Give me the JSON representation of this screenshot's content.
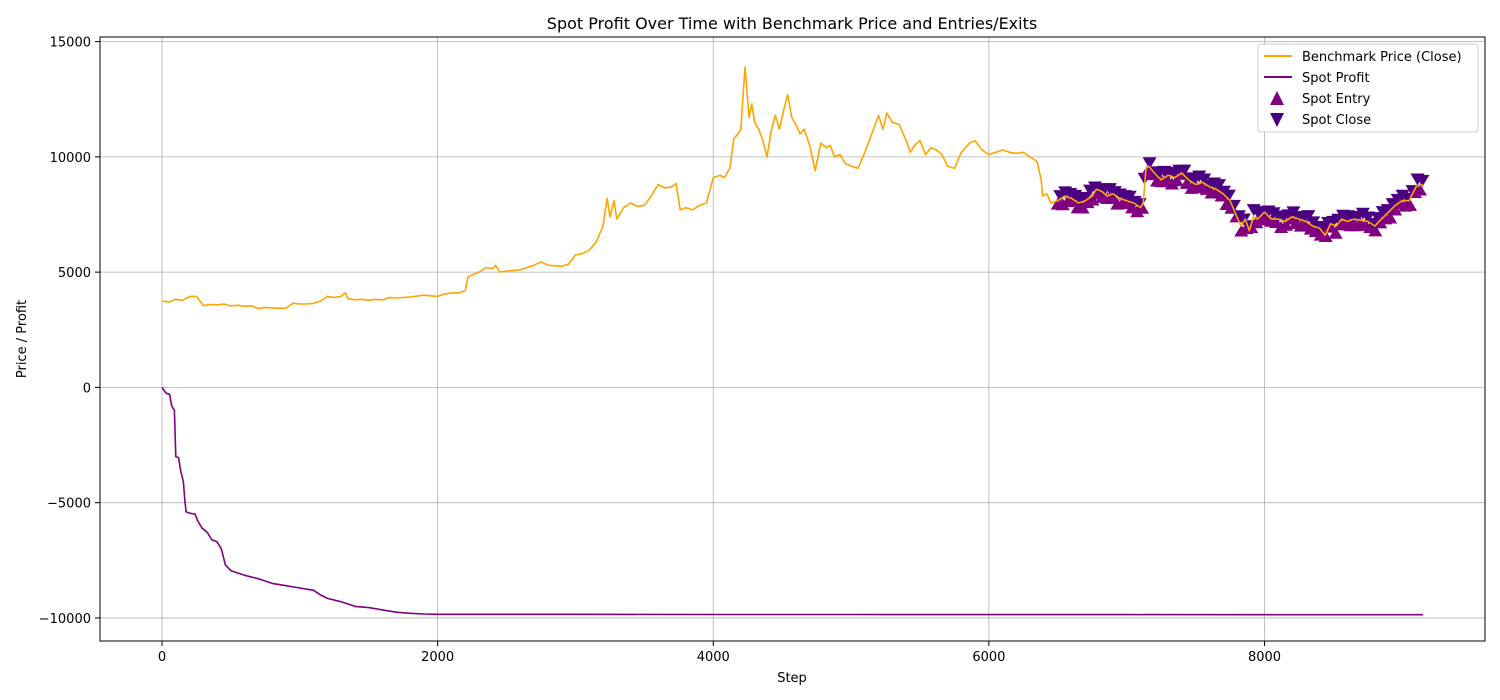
{
  "chart_data": {
    "type": "line",
    "title": "Spot Profit Over Time with Benchmark Price and Entries/Exits",
    "xlabel": "Step",
    "ylabel": "Price / Profit",
    "xlim": [
      -450,
      9600
    ],
    "ylim": [
      -11000,
      15200
    ],
    "xticks": [
      0,
      2000,
      4000,
      6000,
      8000
    ],
    "yticks": [
      -10000,
      -5000,
      0,
      5000,
      10000,
      15000
    ],
    "grid": true,
    "legend_position": "top-right",
    "series": [
      {
        "name": "Benchmark Price (Close)",
        "kind": "line",
        "color": "#ffa500",
        "points": [
          [
            0,
            3750
          ],
          [
            50,
            3700
          ],
          [
            100,
            3820
          ],
          [
            150,
            3780
          ],
          [
            200,
            3950
          ],
          [
            250,
            3950
          ],
          [
            300,
            3550
          ],
          [
            350,
            3600
          ],
          [
            400,
            3580
          ],
          [
            450,
            3620
          ],
          [
            500,
            3530
          ],
          [
            550,
            3560
          ],
          [
            600,
            3520
          ],
          [
            650,
            3540
          ],
          [
            700,
            3420
          ],
          [
            750,
            3470
          ],
          [
            800,
            3450
          ],
          [
            850,
            3430
          ],
          [
            900,
            3440
          ],
          [
            950,
            3650
          ],
          [
            1000,
            3620
          ],
          [
            1050,
            3620
          ],
          [
            1100,
            3650
          ],
          [
            1150,
            3750
          ],
          [
            1200,
            3950
          ],
          [
            1250,
            3900
          ],
          [
            1300,
            3950
          ],
          [
            1330,
            4100
          ],
          [
            1350,
            3850
          ],
          [
            1400,
            3800
          ],
          [
            1450,
            3820
          ],
          [
            1500,
            3780
          ],
          [
            1550,
            3820
          ],
          [
            1600,
            3790
          ],
          [
            1650,
            3900
          ],
          [
            1700,
            3880
          ],
          [
            1800,
            3920
          ],
          [
            1900,
            4000
          ],
          [
            2000,
            3950
          ],
          [
            2050,
            4050
          ],
          [
            2100,
            4100
          ],
          [
            2150,
            4100
          ],
          [
            2200,
            4200
          ],
          [
            2220,
            4800
          ],
          [
            2300,
            5000
          ],
          [
            2350,
            5200
          ],
          [
            2400,
            5150
          ],
          [
            2420,
            5300
          ],
          [
            2450,
            5000
          ],
          [
            2500,
            5050
          ],
          [
            2600,
            5100
          ],
          [
            2700,
            5300
          ],
          [
            2750,
            5450
          ],
          [
            2800,
            5300
          ],
          [
            2900,
            5250
          ],
          [
            2950,
            5350
          ],
          [
            3000,
            5750
          ],
          [
            3050,
            5800
          ],
          [
            3100,
            5950
          ],
          [
            3150,
            6300
          ],
          [
            3200,
            7000
          ],
          [
            3230,
            8200
          ],
          [
            3250,
            7400
          ],
          [
            3280,
            8100
          ],
          [
            3300,
            7300
          ],
          [
            3350,
            7800
          ],
          [
            3400,
            8000
          ],
          [
            3450,
            7850
          ],
          [
            3500,
            7900
          ],
          [
            3550,
            8300
          ],
          [
            3600,
            8800
          ],
          [
            3650,
            8650
          ],
          [
            3700,
            8700
          ],
          [
            3730,
            8850
          ],
          [
            3760,
            7700
          ],
          [
            3800,
            7800
          ],
          [
            3850,
            7700
          ],
          [
            3900,
            7900
          ],
          [
            3950,
            8000
          ],
          [
            4000,
            9100
          ],
          [
            4050,
            9200
          ],
          [
            4080,
            9100
          ],
          [
            4120,
            9500
          ],
          [
            4150,
            10800
          ],
          [
            4180,
            11000
          ],
          [
            4200,
            11200
          ],
          [
            4230,
            13900
          ],
          [
            4260,
            11700
          ],
          [
            4280,
            12300
          ],
          [
            4300,
            11500
          ],
          [
            4330,
            11200
          ],
          [
            4360,
            10700
          ],
          [
            4390,
            10000
          ],
          [
            4420,
            11100
          ],
          [
            4450,
            11800
          ],
          [
            4480,
            11200
          ],
          [
            4510,
            12000
          ],
          [
            4540,
            12700
          ],
          [
            4570,
            11700
          ],
          [
            4600,
            11400
          ],
          [
            4630,
            11000
          ],
          [
            4660,
            11200
          ],
          [
            4700,
            10500
          ],
          [
            4740,
            9400
          ],
          [
            4780,
            10600
          ],
          [
            4820,
            10400
          ],
          [
            4850,
            10500
          ],
          [
            4880,
            10000
          ],
          [
            4920,
            10100
          ],
          [
            4960,
            9700
          ],
          [
            5000,
            9600
          ],
          [
            5050,
            9500
          ],
          [
            5100,
            10200
          ],
          [
            5150,
            11000
          ],
          [
            5200,
            11800
          ],
          [
            5230,
            11200
          ],
          [
            5260,
            11900
          ],
          [
            5300,
            11500
          ],
          [
            5350,
            11400
          ],
          [
            5400,
            10700
          ],
          [
            5430,
            10200
          ],
          [
            5460,
            10500
          ],
          [
            5500,
            10700
          ],
          [
            5540,
            10100
          ],
          [
            5580,
            10400
          ],
          [
            5620,
            10300
          ],
          [
            5660,
            10100
          ],
          [
            5700,
            9600
          ],
          [
            5750,
            9500
          ],
          [
            5800,
            10200
          ],
          [
            5830,
            10400
          ],
          [
            5860,
            10600
          ],
          [
            5900,
            10700
          ],
          [
            5950,
            10300
          ],
          [
            6000,
            10100
          ],
          [
            6050,
            10200
          ],
          [
            6100,
            10300
          ],
          [
            6150,
            10200
          ],
          [
            6200,
            10150
          ],
          [
            6250,
            10200
          ],
          [
            6300,
            10000
          ],
          [
            6350,
            9800
          ],
          [
            6380,
            9000
          ],
          [
            6390,
            8300
          ],
          [
            6420,
            8400
          ],
          [
            6450,
            8000
          ],
          [
            6500,
            8100
          ],
          [
            6550,
            8300
          ],
          [
            6600,
            8200
          ],
          [
            6650,
            8000
          ],
          [
            6700,
            8100
          ],
          [
            6750,
            8300
          ],
          [
            6780,
            8600
          ],
          [
            6820,
            8500
          ],
          [
            6860,
            8300
          ],
          [
            6900,
            8400
          ],
          [
            6950,
            8200
          ],
          [
            7000,
            8100
          ],
          [
            7050,
            8000
          ],
          [
            7100,
            7800
          ],
          [
            7120,
            8000
          ],
          [
            7140,
            9500
          ],
          [
            7160,
            9600
          ],
          [
            7200,
            9300
          ],
          [
            7250,
            9000
          ],
          [
            7300,
            9200
          ],
          [
            7350,
            9100
          ],
          [
            7400,
            9300
          ],
          [
            7450,
            9000
          ],
          [
            7500,
            8800
          ],
          [
            7550,
            8900
          ],
          [
            7600,
            8700
          ],
          [
            7650,
            8600
          ],
          [
            7700,
            8400
          ],
          [
            7750,
            8100
          ],
          [
            7800,
            7400
          ],
          [
            7830,
            7000
          ],
          [
            7860,
            7300
          ],
          [
            7890,
            6800
          ],
          [
            7920,
            7400
          ],
          [
            7950,
            7300
          ],
          [
            8000,
            7600
          ],
          [
            8050,
            7300
          ],
          [
            8100,
            7300
          ],
          [
            8150,
            7200
          ],
          [
            8200,
            7400
          ],
          [
            8250,
            7300
          ],
          [
            8300,
            7200
          ],
          [
            8350,
            7000
          ],
          [
            8400,
            6900
          ],
          [
            8440,
            6600
          ],
          [
            8480,
            7100
          ],
          [
            8520,
            7000
          ],
          [
            8560,
            7300
          ],
          [
            8600,
            7200
          ],
          [
            8650,
            7300
          ],
          [
            8700,
            7250
          ],
          [
            8750,
            7200
          ],
          [
            8800,
            7000
          ],
          [
            8850,
            7300
          ],
          [
            8900,
            7600
          ],
          [
            8950,
            7900
          ],
          [
            9000,
            8100
          ],
          [
            9050,
            8100
          ],
          [
            9100,
            8700
          ],
          [
            9150,
            8800
          ]
        ]
      },
      {
        "name": "Spot Profit",
        "kind": "line",
        "color": "#800080",
        "points": [
          [
            0,
            0
          ],
          [
            30,
            -250
          ],
          [
            55,
            -300
          ],
          [
            70,
            -800
          ],
          [
            90,
            -1000
          ],
          [
            100,
            -3000
          ],
          [
            120,
            -3050
          ],
          [
            135,
            -3600
          ],
          [
            155,
            -4100
          ],
          [
            165,
            -4900
          ],
          [
            175,
            -5400
          ],
          [
            200,
            -5450
          ],
          [
            240,
            -5500
          ],
          [
            260,
            -5800
          ],
          [
            290,
            -6100
          ],
          [
            330,
            -6300
          ],
          [
            360,
            -6600
          ],
          [
            400,
            -6700
          ],
          [
            430,
            -7000
          ],
          [
            460,
            -7700
          ],
          [
            500,
            -7950
          ],
          [
            600,
            -8150
          ],
          [
            700,
            -8300
          ],
          [
            800,
            -8500
          ],
          [
            900,
            -8600
          ],
          [
            1000,
            -8700
          ],
          [
            1100,
            -8800
          ],
          [
            1150,
            -9000
          ],
          [
            1200,
            -9150
          ],
          [
            1300,
            -9300
          ],
          [
            1400,
            -9500
          ],
          [
            1500,
            -9550
          ],
          [
            1600,
            -9650
          ],
          [
            1700,
            -9750
          ],
          [
            1800,
            -9800
          ],
          [
            1900,
            -9830
          ],
          [
            2000,
            -9840
          ],
          [
            3000,
            -9840
          ],
          [
            4000,
            -9850
          ],
          [
            5000,
            -9850
          ],
          [
            6000,
            -9855
          ],
          [
            7000,
            -9855
          ],
          [
            8000,
            -9860
          ],
          [
            9150,
            -9860
          ]
        ]
      },
      {
        "name": "Spot Entry",
        "kind": "marker",
        "marker": "triangle-up",
        "color": "#800080"
      },
      {
        "name": "Spot Close",
        "kind": "marker",
        "marker": "triangle-down",
        "color": "#4b0082"
      }
    ],
    "marker_x_range": [
      6500,
      9150
    ],
    "marker_x_step": 18
  }
}
